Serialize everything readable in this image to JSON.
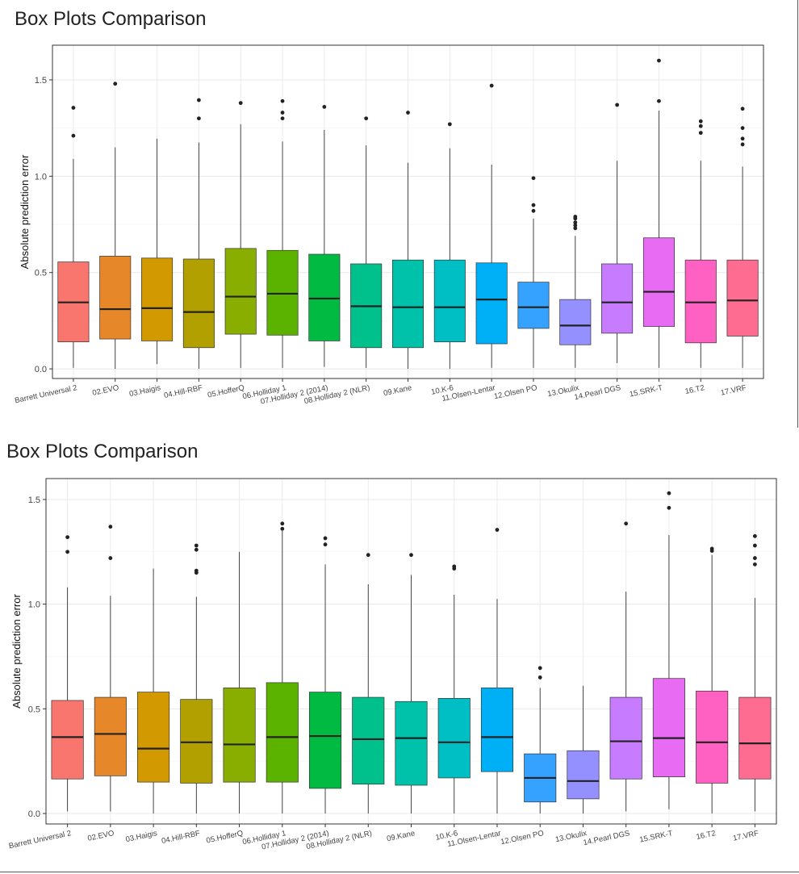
{
  "colors": [
    "#F8766D",
    "#E6872A",
    "#D29A00",
    "#B2A000",
    "#8AAE00",
    "#5BB300",
    "#00BA42",
    "#00C08B",
    "#00C1AA",
    "#00BFC4",
    "#00B0F6",
    "#35A2FF",
    "#9590FF",
    "#C77CFF",
    "#E76BF3",
    "#FF61C3",
    "#FF6C91"
  ],
  "chart_data": [
    {
      "type": "box",
      "title": "Box Plots Comparison",
      "ylabel": "Absolute prediction error",
      "xlabel": "",
      "ylim": [
        -0.05,
        1.68
      ],
      "yticks": [
        0.0,
        0.5,
        1.0,
        1.5
      ],
      "ytick_labels": [
        "0.0",
        "0.5",
        "1.0",
        "1.5"
      ],
      "grid": true,
      "categories": [
        "Barrett Universal 2",
        "02.EVO",
        "03.Haigis",
        "04.Hill-RBF",
        "05.HofferQ",
        "06.Holliday 1",
        "07.Holliday 2 (2014)",
        "08.Holliday 2 (NLR)",
        "09.Kane",
        "10.K-6",
        "11.Olsen-Lentar",
        "12.Olsen PO",
        "13.Okulix",
        "14.Pearl DGS",
        "15.SRK-T",
        "16.T2",
        "17.VRF"
      ],
      "boxes": [
        {
          "min": 0.005,
          "q1": 0.14,
          "median": 0.345,
          "q3": 0.555,
          "max": 1.09,
          "outliers": [
            1.21,
            1.355
          ]
        },
        {
          "min": 0.0,
          "q1": 0.155,
          "median": 0.31,
          "q3": 0.585,
          "max": 1.15,
          "outliers": [
            1.48
          ]
        },
        {
          "min": 0.025,
          "q1": 0.145,
          "median": 0.315,
          "q3": 0.575,
          "max": 1.195,
          "outliers": []
        },
        {
          "min": 0.0,
          "q1": 0.11,
          "median": 0.295,
          "q3": 0.57,
          "max": 1.175,
          "outliers": [
            1.3,
            1.395
          ]
        },
        {
          "min": 0.005,
          "q1": 0.18,
          "median": 0.375,
          "q3": 0.625,
          "max": 1.27,
          "outliers": [
            1.38
          ]
        },
        {
          "min": 0.005,
          "q1": 0.175,
          "median": 0.39,
          "q3": 0.615,
          "max": 1.18,
          "outliers": [
            1.3,
            1.33,
            1.39
          ]
        },
        {
          "min": 0.01,
          "q1": 0.145,
          "median": 0.365,
          "q3": 0.595,
          "max": 1.24,
          "outliers": [
            1.36
          ]
        },
        {
          "min": 0.005,
          "q1": 0.11,
          "median": 0.325,
          "q3": 0.545,
          "max": 1.16,
          "outliers": [
            1.3
          ]
        },
        {
          "min": 0.0,
          "q1": 0.11,
          "median": 0.32,
          "q3": 0.565,
          "max": 1.07,
          "outliers": [
            1.33
          ]
        },
        {
          "min": 0.0,
          "q1": 0.14,
          "median": 0.32,
          "q3": 0.565,
          "max": 1.145,
          "outliers": [
            1.27
          ]
        },
        {
          "min": 0.005,
          "q1": 0.13,
          "median": 0.36,
          "q3": 0.55,
          "max": 1.06,
          "outliers": [
            1.47
          ]
        },
        {
          "min": 0.005,
          "q1": 0.21,
          "median": 0.32,
          "q3": 0.45,
          "max": 0.78,
          "outliers": [
            0.82,
            0.85,
            0.99
          ]
        },
        {
          "min": 0.005,
          "q1": 0.125,
          "median": 0.225,
          "q3": 0.36,
          "max": 0.69,
          "outliers": [
            0.73,
            0.745,
            0.76,
            0.78,
            0.79
          ]
        },
        {
          "min": 0.03,
          "q1": 0.185,
          "median": 0.345,
          "q3": 0.545,
          "max": 1.08,
          "outliers": [
            1.37
          ]
        },
        {
          "min": 0.005,
          "q1": 0.22,
          "median": 0.4,
          "q3": 0.68,
          "max": 1.34,
          "outliers": [
            1.39,
            1.6
          ]
        },
        {
          "min": 0.005,
          "q1": 0.135,
          "median": 0.345,
          "q3": 0.565,
          "max": 1.08,
          "outliers": [
            1.225,
            1.26,
            1.285
          ]
        },
        {
          "min": 0.005,
          "q1": 0.17,
          "median": 0.355,
          "q3": 0.565,
          "max": 1.05,
          "outliers": [
            1.165,
            1.195,
            1.25,
            1.35
          ]
        }
      ]
    },
    {
      "type": "box",
      "title": "Box Plots Comparison",
      "ylabel": "Absolute prediction error",
      "xlabel": "",
      "ylim": [
        -0.05,
        1.6
      ],
      "yticks": [
        0.0,
        0.5,
        1.0,
        1.5
      ],
      "ytick_labels": [
        "0.0",
        "0.5",
        "1.0",
        "1.5"
      ],
      "grid": true,
      "categories": [
        "Barrett Universal 2",
        "02.EVO",
        "03.Haigis",
        "04.Hill-RBF",
        "05.HofferQ",
        "06.Holliday 1",
        "07.Holliday 2 (2014)",
        "08.Holliday 2 (NLR)",
        "09.Kane",
        "10.K-6",
        "11.Olsen-Lentar",
        "12.Olsen PO",
        "13.Okulix",
        "14.Pearl DGS",
        "15.SRK-T",
        "16.T2",
        "17.VRF"
      ],
      "boxes": [
        {
          "min": 0.01,
          "q1": 0.165,
          "median": 0.365,
          "q3": 0.54,
          "max": 1.08,
          "outliers": [
            1.25,
            1.32
          ]
        },
        {
          "min": 0.01,
          "q1": 0.18,
          "median": 0.38,
          "q3": 0.555,
          "max": 1.04,
          "outliers": [
            1.22,
            1.37
          ]
        },
        {
          "min": 0.0,
          "q1": 0.15,
          "median": 0.31,
          "q3": 0.58,
          "max": 1.17,
          "outliers": []
        },
        {
          "min": 0.0,
          "q1": 0.145,
          "median": 0.34,
          "q3": 0.545,
          "max": 1.035,
          "outliers": [
            1.15,
            1.16,
            1.26,
            1.28
          ]
        },
        {
          "min": 0.0,
          "q1": 0.15,
          "median": 0.33,
          "q3": 0.6,
          "max": 1.25,
          "outliers": []
        },
        {
          "min": 0.0,
          "q1": 0.15,
          "median": 0.365,
          "q3": 0.625,
          "max": 1.35,
          "outliers": [
            1.36,
            1.385
          ]
        },
        {
          "min": 0.0,
          "q1": 0.12,
          "median": 0.37,
          "q3": 0.58,
          "max": 1.19,
          "outliers": [
            1.285,
            1.315
          ]
        },
        {
          "min": 0.0,
          "q1": 0.14,
          "median": 0.355,
          "q3": 0.555,
          "max": 1.095,
          "outliers": [
            1.235
          ]
        },
        {
          "min": 0.0,
          "q1": 0.135,
          "median": 0.36,
          "q3": 0.535,
          "max": 1.14,
          "outliers": [
            1.235
          ]
        },
        {
          "min": 0.0,
          "q1": 0.17,
          "median": 0.34,
          "q3": 0.55,
          "max": 1.045,
          "outliers": [
            1.17,
            1.18
          ]
        },
        {
          "min": 0.0,
          "q1": 0.2,
          "median": 0.365,
          "q3": 0.6,
          "max": 1.025,
          "outliers": [
            1.355
          ]
        },
        {
          "min": 0.0,
          "q1": 0.055,
          "median": 0.17,
          "q3": 0.285,
          "max": 0.6,
          "outliers": [
            0.65,
            0.695
          ]
        },
        {
          "min": 0.0,
          "q1": 0.07,
          "median": 0.155,
          "q3": 0.3,
          "max": 0.61,
          "outliers": []
        },
        {
          "min": 0.01,
          "q1": 0.165,
          "median": 0.345,
          "q3": 0.555,
          "max": 1.06,
          "outliers": [
            1.385
          ]
        },
        {
          "min": 0.02,
          "q1": 0.175,
          "median": 0.36,
          "q3": 0.645,
          "max": 1.33,
          "outliers": [
            1.46,
            1.53
          ]
        },
        {
          "min": 0.0,
          "q1": 0.145,
          "median": 0.34,
          "q3": 0.585,
          "max": 1.235,
          "outliers": [
            1.255,
            1.265
          ]
        },
        {
          "min": 0.01,
          "q1": 0.165,
          "median": 0.335,
          "q3": 0.555,
          "max": 1.03,
          "outliers": [
            1.19,
            1.22,
            1.28,
            1.325
          ]
        }
      ]
    }
  ]
}
